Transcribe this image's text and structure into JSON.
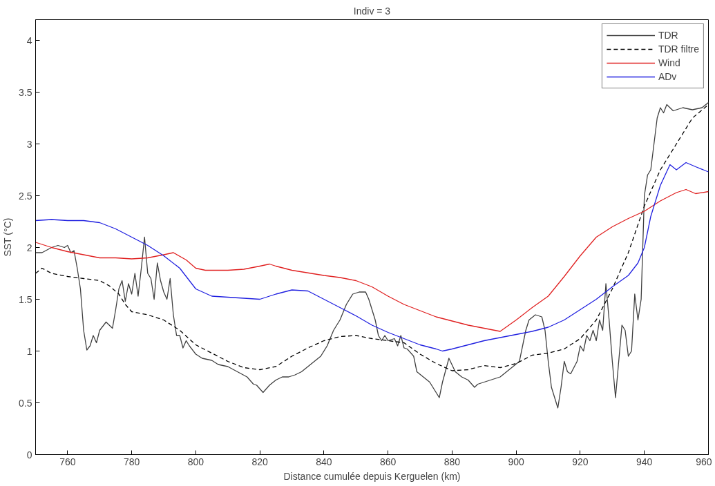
{
  "chart_data": {
    "type": "line",
    "title": "Indiv = 3",
    "xlabel": "Distance cumulée depuis Kerguelen (km)",
    "ylabel": "SST (°C)",
    "xlim": [
      750,
      960
    ],
    "ylim": [
      0,
      4.2
    ],
    "xticks": [
      760,
      780,
      800,
      820,
      840,
      860,
      880,
      900,
      920,
      940,
      960
    ],
    "yticks": [
      0,
      0.5,
      1,
      1.5,
      2,
      2.5,
      3,
      3.5,
      4
    ],
    "grid": false,
    "legend": "top right",
    "marker": "none",
    "series": [
      {
        "name": "TDR",
        "color": "#404040",
        "line_style": "solid",
        "x": [
          750,
          752,
          755,
          757,
          759,
          760,
          761,
          762,
          763,
          764,
          765,
          766,
          767,
          768,
          769,
          770,
          772,
          774,
          775,
          776,
          777,
          778,
          779,
          780,
          781,
          782,
          783,
          784,
          785,
          786,
          787,
          788,
          789,
          790,
          791,
          792,
          793,
          794,
          795,
          796,
          797,
          798,
          800,
          802,
          805,
          807,
          810,
          813,
          816,
          818,
          819,
          821,
          823,
          825,
          827,
          829,
          831,
          833,
          835,
          837,
          839,
          841,
          843,
          845,
          847,
          849,
          851,
          853,
          854,
          856,
          857,
          858,
          859,
          860,
          862,
          863,
          864,
          865,
          866,
          868,
          869,
          871,
          873,
          875,
          876,
          877,
          879,
          881,
          883,
          885,
          887,
          888,
          890,
          892,
          895,
          897,
          899,
          901,
          902,
          903,
          904,
          906,
          908,
          909,
          910,
          911,
          913,
          914,
          915,
          916,
          917,
          919,
          920,
          921,
          922,
          923,
          924,
          925,
          926,
          927,
          928,
          929,
          930,
          931,
          932,
          933,
          934,
          935,
          936,
          937,
          938,
          939,
          940,
          941,
          942,
          943,
          944,
          945,
          946,
          947,
          949,
          952,
          955,
          958,
          960
        ],
        "values": [
          1.95,
          1.95,
          2.0,
          2.02,
          2.0,
          2.02,
          1.95,
          1.97,
          1.8,
          1.6,
          1.2,
          1.01,
          1.05,
          1.15,
          1.08,
          1.2,
          1.28,
          1.22,
          1.4,
          1.6,
          1.68,
          1.48,
          1.65,
          1.55,
          1.75,
          1.53,
          1.8,
          2.1,
          1.75,
          1.7,
          1.5,
          1.85,
          1.68,
          1.57,
          1.5,
          1.7,
          1.35,
          1.15,
          1.15,
          1.03,
          1.1,
          1.05,
          0.97,
          0.93,
          0.91,
          0.87,
          0.85,
          0.8,
          0.75,
          0.68,
          0.67,
          0.6,
          0.67,
          0.72,
          0.75,
          0.75,
          0.77,
          0.8,
          0.85,
          0.9,
          0.95,
          1.05,
          1.2,
          1.3,
          1.45,
          1.55,
          1.57,
          1.57,
          1.5,
          1.3,
          1.15,
          1.1,
          1.15,
          1.1,
          1.12,
          1.05,
          1.15,
          1.03,
          1.02,
          0.95,
          0.8,
          0.75,
          0.7,
          0.6,
          0.55,
          0.7,
          0.93,
          0.8,
          0.75,
          0.72,
          0.65,
          0.68,
          0.7,
          0.72,
          0.75,
          0.8,
          0.85,
          0.9,
          1.05,
          1.2,
          1.3,
          1.35,
          1.33,
          1.2,
          0.9,
          0.65,
          0.45,
          0.65,
          0.9,
          0.8,
          0.78,
          0.9,
          1.05,
          1.0,
          1.15,
          1.1,
          1.2,
          1.1,
          1.3,
          1.2,
          1.65,
          1.3,
          0.9,
          0.55,
          0.9,
          1.25,
          1.2,
          0.95,
          1.0,
          1.55,
          1.3,
          1.5,
          2.5,
          2.7,
          2.75,
          3.0,
          3.25,
          3.35,
          3.3,
          3.38,
          3.32,
          3.35,
          3.33,
          3.35,
          3.4
        ]
      },
      {
        "name": "TDR filtre",
        "color": "#000000",
        "line_style": "dashed",
        "x": [
          750,
          752,
          755,
          760,
          765,
          770,
          773,
          776,
          778,
          780,
          785,
          790,
          795,
          800,
          805,
          810,
          815,
          820,
          825,
          830,
          835,
          840,
          845,
          850,
          855,
          860,
          865,
          870,
          875,
          880,
          885,
          890,
          895,
          900,
          905,
          910,
          915,
          920,
          925,
          930,
          935,
          940,
          945,
          950,
          955,
          960
        ],
        "values": [
          1.75,
          1.8,
          1.75,
          1.72,
          1.7,
          1.68,
          1.63,
          1.55,
          1.45,
          1.38,
          1.35,
          1.3,
          1.2,
          1.06,
          0.98,
          0.9,
          0.84,
          0.82,
          0.85,
          0.95,
          1.03,
          1.1,
          1.14,
          1.15,
          1.12,
          1.1,
          1.08,
          0.97,
          0.88,
          0.81,
          0.82,
          0.86,
          0.84,
          0.88,
          0.96,
          0.98,
          1.02,
          1.12,
          1.3,
          1.6,
          1.95,
          2.4,
          2.75,
          3.0,
          3.25,
          3.38
        ]
      },
      {
        "name": "Wind",
        "color": "#e02020",
        "line_style": "solid",
        "x": [
          750,
          755,
          760,
          765,
          770,
          775,
          780,
          785,
          790,
          793,
          797,
          800,
          803,
          810,
          815,
          820,
          823,
          825,
          830,
          840,
          845,
          850,
          855,
          860,
          865,
          870,
          875,
          880,
          885,
          890,
          895,
          900,
          905,
          910,
          915,
          920,
          925,
          930,
          935,
          940,
          945,
          950,
          953,
          956,
          960
        ],
        "values": [
          2.05,
          2.0,
          1.96,
          1.93,
          1.9,
          1.9,
          1.89,
          1.9,
          1.93,
          1.95,
          1.88,
          1.8,
          1.78,
          1.78,
          1.79,
          1.82,
          1.84,
          1.82,
          1.78,
          1.73,
          1.71,
          1.68,
          1.62,
          1.53,
          1.45,
          1.39,
          1.33,
          1.29,
          1.25,
          1.22,
          1.19,
          1.3,
          1.42,
          1.53,
          1.72,
          1.92,
          2.1,
          2.2,
          2.28,
          2.35,
          2.45,
          2.53,
          2.56,
          2.52,
          2.54
        ]
      },
      {
        "name": "ADv",
        "color": "#2020e0",
        "line_style": "solid",
        "x": [
          750,
          755,
          760,
          765,
          770,
          775,
          780,
          785,
          790,
          795,
          800,
          805,
          810,
          815,
          820,
          825,
          830,
          835,
          840,
          845,
          850,
          855,
          860,
          865,
          870,
          875,
          877,
          880,
          885,
          890,
          895,
          900,
          905,
          910,
          915,
          920,
          925,
          930,
          935,
          938,
          940,
          942,
          945,
          948,
          950,
          953,
          956,
          960
        ],
        "values": [
          2.26,
          2.27,
          2.26,
          2.26,
          2.24,
          2.18,
          2.1,
          2.02,
          1.92,
          1.8,
          1.6,
          1.53,
          1.52,
          1.51,
          1.5,
          1.55,
          1.59,
          1.58,
          1.5,
          1.42,
          1.34,
          1.25,
          1.18,
          1.12,
          1.06,
          1.02,
          1.0,
          1.02,
          1.06,
          1.1,
          1.13,
          1.16,
          1.19,
          1.23,
          1.3,
          1.4,
          1.5,
          1.62,
          1.73,
          1.85,
          2.0,
          2.3,
          2.6,
          2.8,
          2.75,
          2.82,
          2.78,
          2.73
        ]
      }
    ]
  }
}
